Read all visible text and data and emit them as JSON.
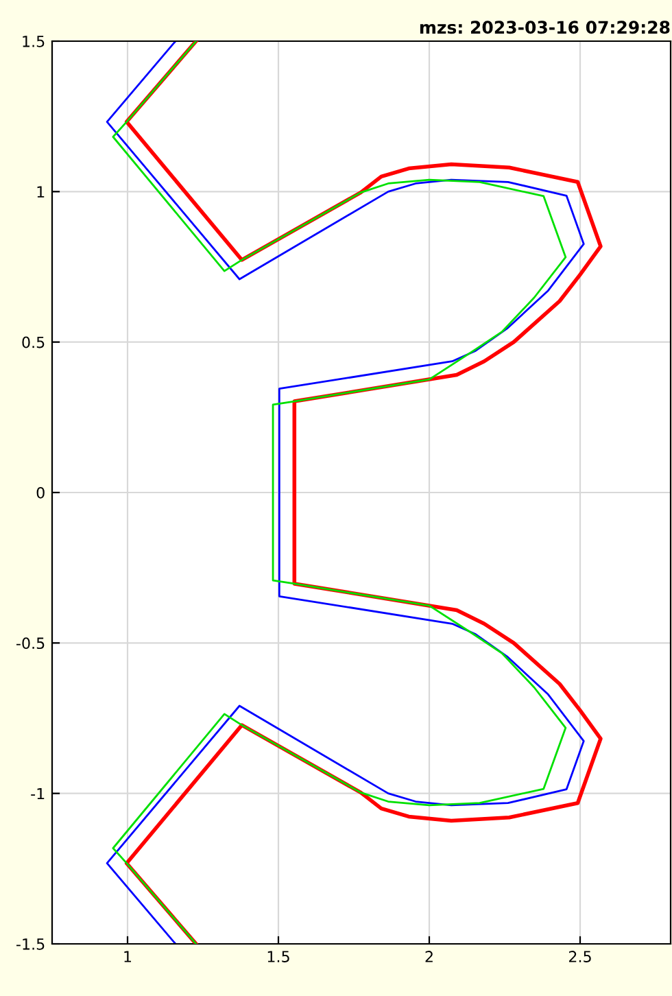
{
  "chart_data": {
    "type": "line",
    "title": "mzs: 2023-03-16 07:29:28",
    "xlim": [
      0.75,
      2.8
    ],
    "ylim": [
      -1.5,
      1.5
    ],
    "xticks": [
      1,
      1.5,
      2,
      2.5
    ],
    "yticks": [
      -1.5,
      -1,
      -0.5,
      0,
      0.5,
      1,
      1.5
    ],
    "grid": true,
    "series": [
      {
        "color": "#0000ff",
        "x": [
          1.159,
          0.932,
          1.371,
          1.864,
          1.955,
          2.073,
          2.261,
          2.455,
          2.512,
          2.394,
          2.258,
          2.152,
          2.076,
          1.503,
          1.503,
          2.076,
          2.152,
          2.258,
          2.394,
          2.512,
          2.455,
          2.261,
          2.073,
          1.955,
          1.864,
          1.371,
          0.932,
          1.159
        ],
        "values": [
          1.5,
          1.232,
          0.709,
          1.0,
          1.027,
          1.039,
          1.032,
          0.986,
          0.826,
          0.671,
          0.545,
          0.47,
          0.436,
          0.345,
          -0.345,
          -0.436,
          -0.47,
          -0.545,
          -0.671,
          -0.826,
          -0.986,
          -1.032,
          -1.039,
          -1.027,
          -1.0,
          -0.709,
          -1.232,
          -1.5
        ]
      },
      {
        "color": "#ff0000",
        "x": [
          1.227,
          0.997,
          1.379,
          1.773,
          1.841,
          1.932,
          2.073,
          2.265,
          2.492,
          2.568,
          2.5,
          2.432,
          2.28,
          2.182,
          2.091,
          2.0,
          1.553,
          1.553,
          2.0,
          2.091,
          2.182,
          2.28,
          2.432,
          2.5,
          2.568,
          2.492,
          2.265,
          2.073,
          1.932,
          1.841,
          1.773,
          1.379,
          0.997,
          1.227
        ],
        "values": [
          1.5,
          1.232,
          0.773,
          0.997,
          1.05,
          1.077,
          1.091,
          1.08,
          1.032,
          0.818,
          0.724,
          0.636,
          0.5,
          0.436,
          0.391,
          0.376,
          0.303,
          -0.303,
          -0.376,
          -0.391,
          -0.436,
          -0.5,
          -0.636,
          -0.724,
          -0.818,
          -1.032,
          -1.08,
          -1.091,
          -1.077,
          -1.05,
          -0.997,
          -0.773,
          -1.232,
          -1.5
        ]
      },
      {
        "color": "#00e000",
        "x": [
          1.227,
          0.997,
          0.952,
          1.321,
          1.379,
          1.773,
          1.864,
          2.0,
          2.167,
          2.379,
          2.452,
          2.348,
          2.242,
          2.136,
          2.0,
          1.553,
          1.482,
          1.482,
          1.553,
          2.0,
          2.136,
          2.242,
          2.348,
          2.452,
          2.379,
          2.167,
          2.0,
          1.864,
          1.773,
          1.379,
          1.321,
          0.952,
          0.997,
          1.227
        ],
        "values": [
          1.5,
          1.232,
          1.182,
          0.736,
          0.773,
          0.997,
          1.027,
          1.039,
          1.032,
          0.985,
          0.782,
          0.648,
          0.535,
          0.464,
          0.376,
          0.303,
          0.292,
          -0.292,
          -0.303,
          -0.376,
          -0.464,
          -0.535,
          -0.648,
          -0.782,
          -0.985,
          -1.032,
          -1.039,
          -1.027,
          -0.997,
          -0.773,
          -0.736,
          -1.182,
          -1.232,
          -1.5
        ]
      }
    ]
  }
}
